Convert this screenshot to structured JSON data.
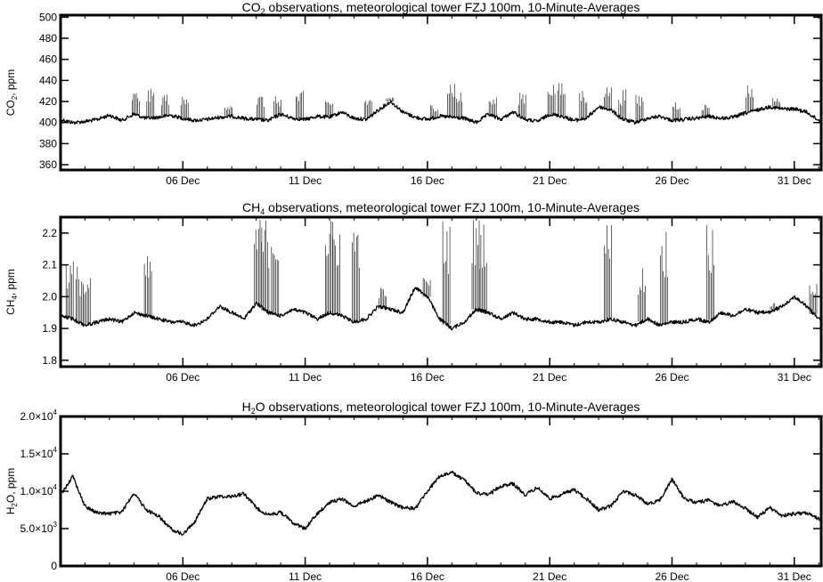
{
  "chart_data": [
    {
      "type": "line",
      "title": {
        "pre": "CO",
        "sub": "2",
        "post": " observations, meteorological tower FZJ 100m, 10-Minute-Averages"
      },
      "ylabel": {
        "pre": "CO",
        "sub": "2",
        "post": ", ppm"
      },
      "xlabel": "",
      "ylim": [
        355,
        502
      ],
      "yticks": [
        {
          "v": 360,
          "label": "360"
        },
        {
          "v": 380,
          "label": "380"
        },
        {
          "v": 400,
          "label": "400"
        },
        {
          "v": 420,
          "label": "420"
        },
        {
          "v": 440,
          "label": "440"
        },
        {
          "v": 460,
          "label": "460"
        },
        {
          "v": 480,
          "label": "480"
        },
        {
          "v": 500,
          "label": "500"
        }
      ],
      "xlim": [
        1.0,
        32.1
      ],
      "xticks": [
        {
          "v": 6,
          "label": "06 Dec"
        },
        {
          "v": 11,
          "label": "11 Dec"
        },
        {
          "v": 16,
          "label": "16 Dec"
        },
        {
          "v": 21,
          "label": "21 Dec"
        },
        {
          "v": 26,
          "label": "26 Dec"
        },
        {
          "v": 31,
          "label": "31 Dec"
        }
      ],
      "x": [
        1.0,
        1.5,
        2.0,
        2.5,
        3.0,
        3.5,
        4.0,
        4.5,
        5.0,
        5.5,
        6.0,
        6.5,
        7.0,
        7.5,
        8.0,
        8.5,
        9.0,
        9.5,
        10.0,
        10.5,
        11.0,
        11.5,
        12.0,
        12.5,
        13.0,
        13.5,
        14.0,
        14.5,
        15.0,
        15.5,
        16.0,
        16.5,
        17.0,
        17.5,
        18.0,
        18.5,
        19.0,
        19.5,
        20.0,
        20.5,
        21.0,
        21.5,
        22.0,
        22.5,
        23.0,
        23.5,
        24.0,
        24.5,
        25.0,
        25.5,
        26.0,
        26.5,
        27.0,
        27.5,
        28.0,
        28.5,
        29.0,
        29.5,
        30.0,
        30.5,
        31.0,
        31.5,
        32.0
      ],
      "y": [
        403,
        400,
        401,
        403,
        407,
        402,
        408,
        404,
        405,
        407,
        404,
        402,
        403,
        405,
        406,
        404,
        403,
        402,
        408,
        404,
        403,
        406,
        405,
        410,
        404,
        403,
        412,
        420,
        410,
        405,
        403,
        406,
        405,
        404,
        400,
        408,
        403,
        410,
        403,
        401,
        408,
        406,
        402,
        404,
        415,
        412,
        403,
        400,
        404,
        406,
        402,
        403,
        404,
        406,
        404,
        405,
        409,
        412,
        415,
        413,
        413,
        410,
        402
      ],
      "spikes": [
        {
          "x": 4.1,
          "y": 430
        },
        {
          "x": 4.7,
          "y": 432
        },
        {
          "x": 5.3,
          "y": 428
        },
        {
          "x": 6.1,
          "y": 425
        },
        {
          "x": 7.9,
          "y": 420
        },
        {
          "x": 9.2,
          "y": 427
        },
        {
          "x": 9.9,
          "y": 425
        },
        {
          "x": 10.8,
          "y": 430
        },
        {
          "x": 12.0,
          "y": 422
        },
        {
          "x": 13.6,
          "y": 425
        },
        {
          "x": 14.5,
          "y": 424
        },
        {
          "x": 16.3,
          "y": 418
        },
        {
          "x": 17.0,
          "y": 442
        },
        {
          "x": 17.3,
          "y": 430
        },
        {
          "x": 18.7,
          "y": 424
        },
        {
          "x": 19.9,
          "y": 432
        },
        {
          "x": 21.1,
          "y": 440
        },
        {
          "x": 21.5,
          "y": 438
        },
        {
          "x": 22.4,
          "y": 433
        },
        {
          "x": 23.4,
          "y": 435
        },
        {
          "x": 24.0,
          "y": 432
        },
        {
          "x": 24.7,
          "y": 428
        },
        {
          "x": 26.2,
          "y": 422
        },
        {
          "x": 27.4,
          "y": 418
        },
        {
          "x": 29.2,
          "y": 437
        },
        {
          "x": 30.3,
          "y": 424
        }
      ]
    },
    {
      "type": "line",
      "title": {
        "pre": "CH",
        "sub": "4",
        "post": " observations, meteorological tower FZJ 100m, 10-Minute-Averages"
      },
      "ylabel": {
        "pre": "CH",
        "sub": "4",
        "post": ", ppm"
      },
      "xlabel": "",
      "ylim": [
        1.78,
        2.25
      ],
      "yticks": [
        {
          "v": 1.8,
          "label": "1.8"
        },
        {
          "v": 1.9,
          "label": "1.9"
        },
        {
          "v": 2.0,
          "label": "2.0"
        },
        {
          "v": 2.1,
          "label": "2.1"
        },
        {
          "v": 2.2,
          "label": "2.2"
        }
      ],
      "xlim": [
        1.0,
        32.1
      ],
      "xticks": [
        {
          "v": 6,
          "label": "06 Dec"
        },
        {
          "v": 11,
          "label": "11 Dec"
        },
        {
          "v": 16,
          "label": "16 Dec"
        },
        {
          "v": 21,
          "label": "21 Dec"
        },
        {
          "v": 26,
          "label": "26 Dec"
        },
        {
          "v": 31,
          "label": "31 Dec"
        }
      ],
      "x": [
        1.0,
        1.5,
        2.0,
        2.5,
        3.0,
        3.5,
        4.0,
        4.5,
        5.0,
        5.5,
        6.0,
        6.5,
        7.0,
        7.5,
        8.0,
        8.5,
        9.0,
        9.5,
        10.0,
        10.5,
        11.0,
        11.5,
        12.0,
        12.5,
        13.0,
        13.5,
        14.0,
        14.5,
        15.0,
        15.5,
        16.0,
        16.5,
        17.0,
        17.5,
        18.0,
        18.5,
        19.0,
        19.5,
        20.0,
        20.5,
        21.0,
        21.5,
        22.0,
        22.5,
        23.0,
        23.5,
        24.0,
        24.5,
        25.0,
        25.5,
        26.0,
        26.5,
        27.0,
        27.5,
        28.0,
        28.5,
        29.0,
        29.5,
        30.0,
        30.5,
        31.0,
        31.5,
        32.0
      ],
      "y": [
        1.94,
        1.93,
        1.91,
        1.92,
        1.93,
        1.92,
        1.95,
        1.94,
        1.93,
        1.92,
        1.92,
        1.91,
        1.93,
        1.97,
        1.95,
        1.93,
        1.98,
        1.95,
        1.94,
        1.96,
        1.95,
        1.93,
        1.95,
        1.94,
        1.92,
        1.93,
        1.97,
        1.96,
        1.95,
        2.03,
        2.0,
        1.93,
        1.9,
        1.92,
        1.96,
        1.95,
        1.93,
        1.95,
        1.93,
        1.93,
        1.92,
        1.92,
        1.91,
        1.92,
        1.92,
        1.93,
        1.92,
        1.91,
        1.93,
        1.91,
        1.92,
        1.92,
        1.93,
        1.92,
        1.95,
        1.94,
        1.96,
        1.95,
        1.95,
        1.97,
        2.0,
        1.97,
        1.93
      ],
      "spikes": [
        {
          "x": 1.4,
          "y": 2.12
        },
        {
          "x": 1.8,
          "y": 2.1
        },
        {
          "x": 2.1,
          "y": 2.06
        },
        {
          "x": 4.6,
          "y": 2.13
        },
        {
          "x": 9.1,
          "y": 2.25
        },
        {
          "x": 9.4,
          "y": 2.25
        },
        {
          "x": 9.8,
          "y": 2.25
        },
        {
          "x": 12.0,
          "y": 2.25
        },
        {
          "x": 12.3,
          "y": 2.25
        },
        {
          "x": 13.1,
          "y": 2.25
        },
        {
          "x": 14.2,
          "y": 2.03
        },
        {
          "x": 16.0,
          "y": 2.06
        },
        {
          "x": 16.8,
          "y": 2.25
        },
        {
          "x": 18.0,
          "y": 2.25
        },
        {
          "x": 18.3,
          "y": 2.25
        },
        {
          "x": 23.4,
          "y": 2.24
        },
        {
          "x": 24.8,
          "y": 2.1
        },
        {
          "x": 25.7,
          "y": 2.22
        },
        {
          "x": 27.6,
          "y": 2.25
        },
        {
          "x": 30.2,
          "y": 1.98
        },
        {
          "x": 31.8,
          "y": 2.05
        }
      ]
    },
    {
      "type": "line",
      "title": {
        "pre": "H",
        "sub": "2",
        "post": "O observations, meteorological tower FZJ 100m, 10-Minute-Averages"
      },
      "ylabel": {
        "pre": "H",
        "sub": "2",
        "post": "O, ppm"
      },
      "xlabel": "",
      "ylim": [
        0,
        20000
      ],
      "yticks": [
        {
          "v": 0,
          "label": "0",
          "exp": ""
        },
        {
          "v": 5000,
          "label": "5.0×10",
          "exp": "3"
        },
        {
          "v": 10000,
          "label": "1.0×10",
          "exp": "4"
        },
        {
          "v": 15000,
          "label": "1.5×10",
          "exp": "4"
        },
        {
          "v": 20000,
          "label": "2.0×10",
          "exp": "4"
        }
      ],
      "xlim": [
        1.0,
        32.1
      ],
      "xticks": [
        {
          "v": 6,
          "label": "06 Dec"
        },
        {
          "v": 11,
          "label": "11 Dec"
        },
        {
          "v": 16,
          "label": "16 Dec"
        },
        {
          "v": 21,
          "label": "21 Dec"
        },
        {
          "v": 26,
          "label": "26 Dec"
        },
        {
          "v": 31,
          "label": "31 Dec"
        }
      ],
      "x": [
        1.0,
        1.5,
        2.0,
        2.5,
        3.0,
        3.5,
        4.0,
        4.5,
        5.0,
        5.5,
        6.0,
        6.5,
        7.0,
        7.5,
        8.0,
        8.5,
        9.0,
        9.5,
        10.0,
        10.5,
        11.0,
        11.5,
        12.0,
        12.5,
        13.0,
        13.5,
        14.0,
        14.5,
        15.0,
        15.5,
        16.0,
        16.5,
        17.0,
        17.5,
        18.0,
        18.5,
        19.0,
        19.5,
        20.0,
        20.5,
        21.0,
        21.5,
        22.0,
        22.5,
        23.0,
        23.5,
        24.0,
        24.5,
        25.0,
        25.5,
        26.0,
        26.5,
        27.0,
        27.5,
        28.0,
        28.5,
        29.0,
        29.5,
        30.0,
        30.5,
        31.0,
        31.5,
        32.0
      ],
      "y": [
        9500,
        12000,
        8000,
        7100,
        7000,
        7200,
        9800,
        7500,
        6700,
        5000,
        4200,
        6000,
        9000,
        9300,
        9300,
        9700,
        7800,
        6800,
        7200,
        5800,
        5000,
        7000,
        8500,
        9000,
        8000,
        8700,
        9500,
        8500,
        7800,
        7700,
        10000,
        12000,
        12500,
        11500,
        9800,
        9500,
        10700,
        11000,
        9500,
        10500,
        9000,
        9600,
        10200,
        9000,
        7500,
        8000,
        10000,
        9500,
        8300,
        8800,
        11600,
        9000,
        8500,
        8800,
        8000,
        8600,
        7700,
        6500,
        7800,
        6700,
        7000,
        7100,
        6300
      ]
    }
  ]
}
